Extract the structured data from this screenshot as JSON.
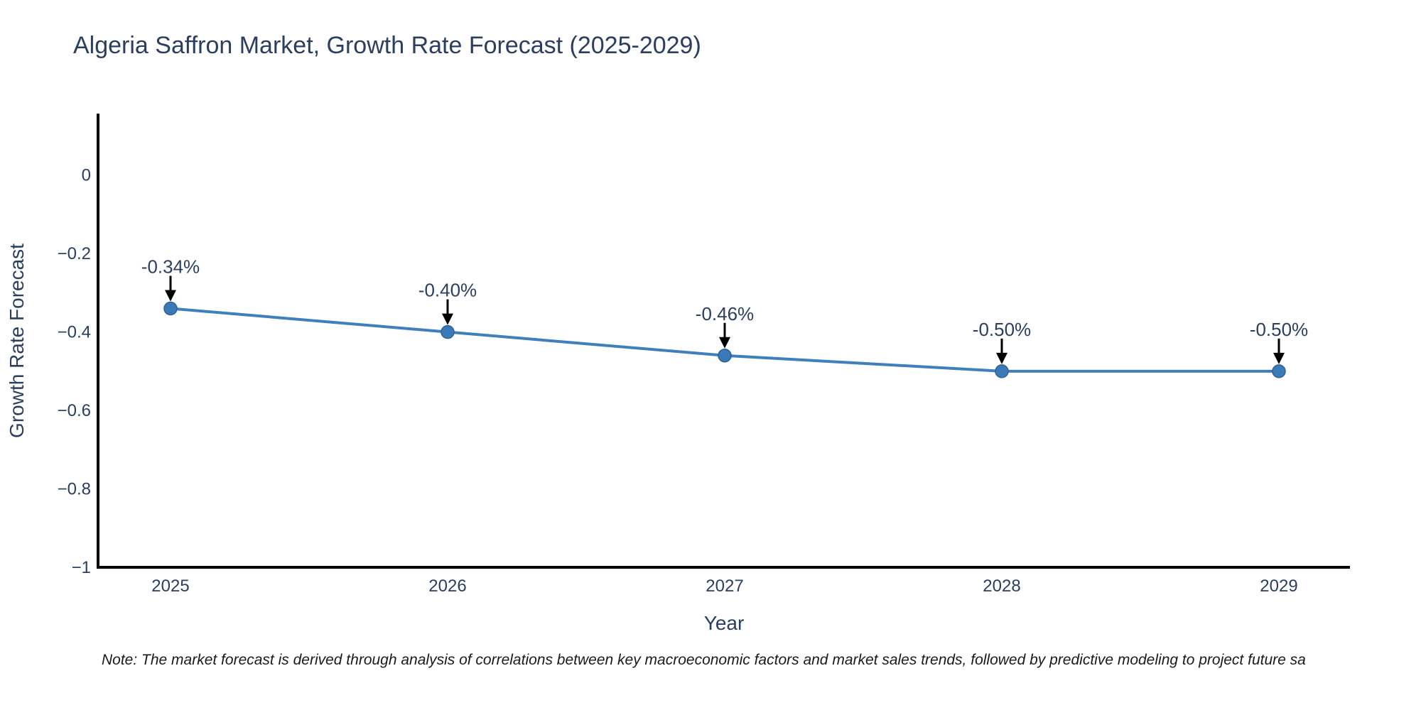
{
  "title": {
    "text": "Algeria Saffron Market, Growth Rate Forecast (2025-2029)"
  },
  "note": {
    "text": "Note: The market forecast is derived through analysis of correlations between key macroeconomic factors and market sales trends, followed by predictive modeling to project future sa"
  },
  "chart_data": {
    "type": "line",
    "title": "Algeria Saffron Market, Growth Rate Forecast (2025-2029)",
    "xlabel": "Year",
    "ylabel": "Growth Rate Forecast",
    "categories": [
      2025,
      2026,
      2027,
      2028,
      2029
    ],
    "series": [
      {
        "name": "Growth Rate Forecast",
        "values": [
          -0.34,
          -0.4,
          -0.46,
          -0.5,
          -0.5
        ]
      }
    ],
    "point_labels": [
      "-0.34%",
      "-0.40%",
      "-0.46%",
      "-0.50%",
      "-0.50%"
    ],
    "xtick_labels": [
      "2025",
      "2026",
      "2027",
      "2028",
      "2029"
    ],
    "ytick_values": [
      0,
      -0.2,
      -0.4,
      -0.6,
      -0.8,
      -1
    ],
    "ytick_labels": [
      "0",
      "−0.2",
      "−0.4",
      "−0.6",
      "−0.8",
      "−1"
    ],
    "ylim": [
      -1,
      0.157
    ],
    "grid": false,
    "legend_position": "none",
    "colors": {
      "line": "#3f7fbd",
      "marker": "#3b7ab8",
      "marker_edge": "#306195",
      "axis": "#000000",
      "text": "#2a3f5f",
      "annotation_text": "#2a3f5f",
      "annotation_arrow": "#000000",
      "background": "#ffffff"
    }
  }
}
